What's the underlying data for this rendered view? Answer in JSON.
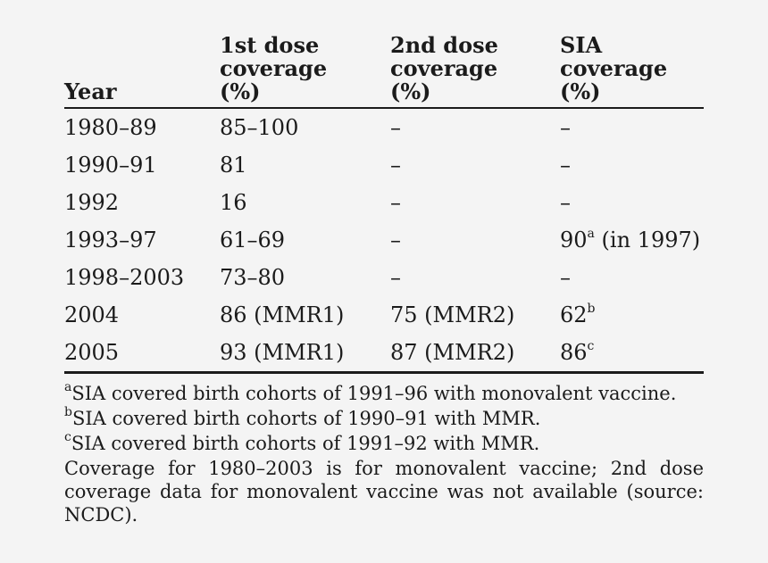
{
  "table": {
    "headers": [
      [
        "Year"
      ],
      [
        "1st dose",
        "coverage",
        "(%)"
      ],
      [
        "2nd dose",
        "coverage",
        "(%)"
      ],
      [
        "SIA",
        "coverage",
        "(%)"
      ]
    ],
    "rows": [
      {
        "year": "1980–89",
        "dose1": "85–100",
        "dose2": "–",
        "sia": "–",
        "sia_mark": "",
        "sia_note": ""
      },
      {
        "year": "1990–91",
        "dose1": "81",
        "dose2": "–",
        "sia": "–",
        "sia_mark": "",
        "sia_note": ""
      },
      {
        "year": "1992",
        "dose1": "16",
        "dose2": "–",
        "sia": "–",
        "sia_mark": "",
        "sia_note": ""
      },
      {
        "year": "1993–97",
        "dose1": "61–69",
        "dose2": "–",
        "sia": "90",
        "sia_mark": "a",
        "sia_note": "(in 1997)"
      },
      {
        "year": "1998–2003",
        "dose1": "73–80",
        "dose2": "–",
        "sia": "–",
        "sia_mark": "",
        "sia_note": ""
      },
      {
        "year": "2004",
        "dose1": "86 (MMR1)",
        "dose2": "75 (MMR2)",
        "sia": "62",
        "sia_mark": "b",
        "sia_note": ""
      },
      {
        "year": "2005",
        "dose1": "93 (MMR1)",
        "dose2": "87 (MMR2)",
        "sia": "86",
        "sia_mark": "c",
        "sia_note": ""
      }
    ]
  },
  "footnotes": [
    {
      "mark": "a",
      "text": "SIA covered birth cohorts of 1991–96 with monovalent vaccine."
    },
    {
      "mark": "b",
      "text": "SIA covered birth cohorts of 1990–91 with MMR."
    },
    {
      "mark": "c",
      "text": "SIA covered birth cohorts of 1991–92 with MMR."
    }
  ],
  "general_note": "Coverage for 1980–2003 is for monovalent vaccine; 2nd dose coverage data for monovalent vaccine was not available (source: NCDC)."
}
